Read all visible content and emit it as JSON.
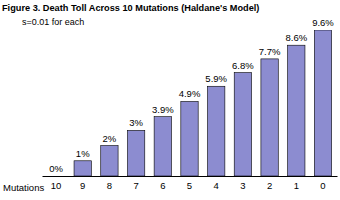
{
  "chart_data": {
    "type": "bar",
    "title": "Figure 3. Death Toll Across 10 Mutations (Haldane's Model)",
    "subtitle": "s=0.01 for each",
    "x_label": "Mutations",
    "categories": [
      "10",
      "9",
      "8",
      "7",
      "6",
      "5",
      "4",
      "3",
      "2",
      "1",
      "0"
    ],
    "values": [
      0,
      1,
      2,
      3,
      3.9,
      4.9,
      5.9,
      6.8,
      7.7,
      8.6,
      9.6
    ],
    "value_labels": [
      "0%",
      "1%",
      "2%",
      "3%",
      "3.9%",
      "4.9%",
      "5.9%",
      "6.8%",
      "7.7%",
      "8.6%",
      "9.6%"
    ],
    "color": "#8c8cd0",
    "ylim": [
      0,
      9.6
    ],
    "data_labels": true,
    "tick_labels": "x",
    "grid": false
  }
}
